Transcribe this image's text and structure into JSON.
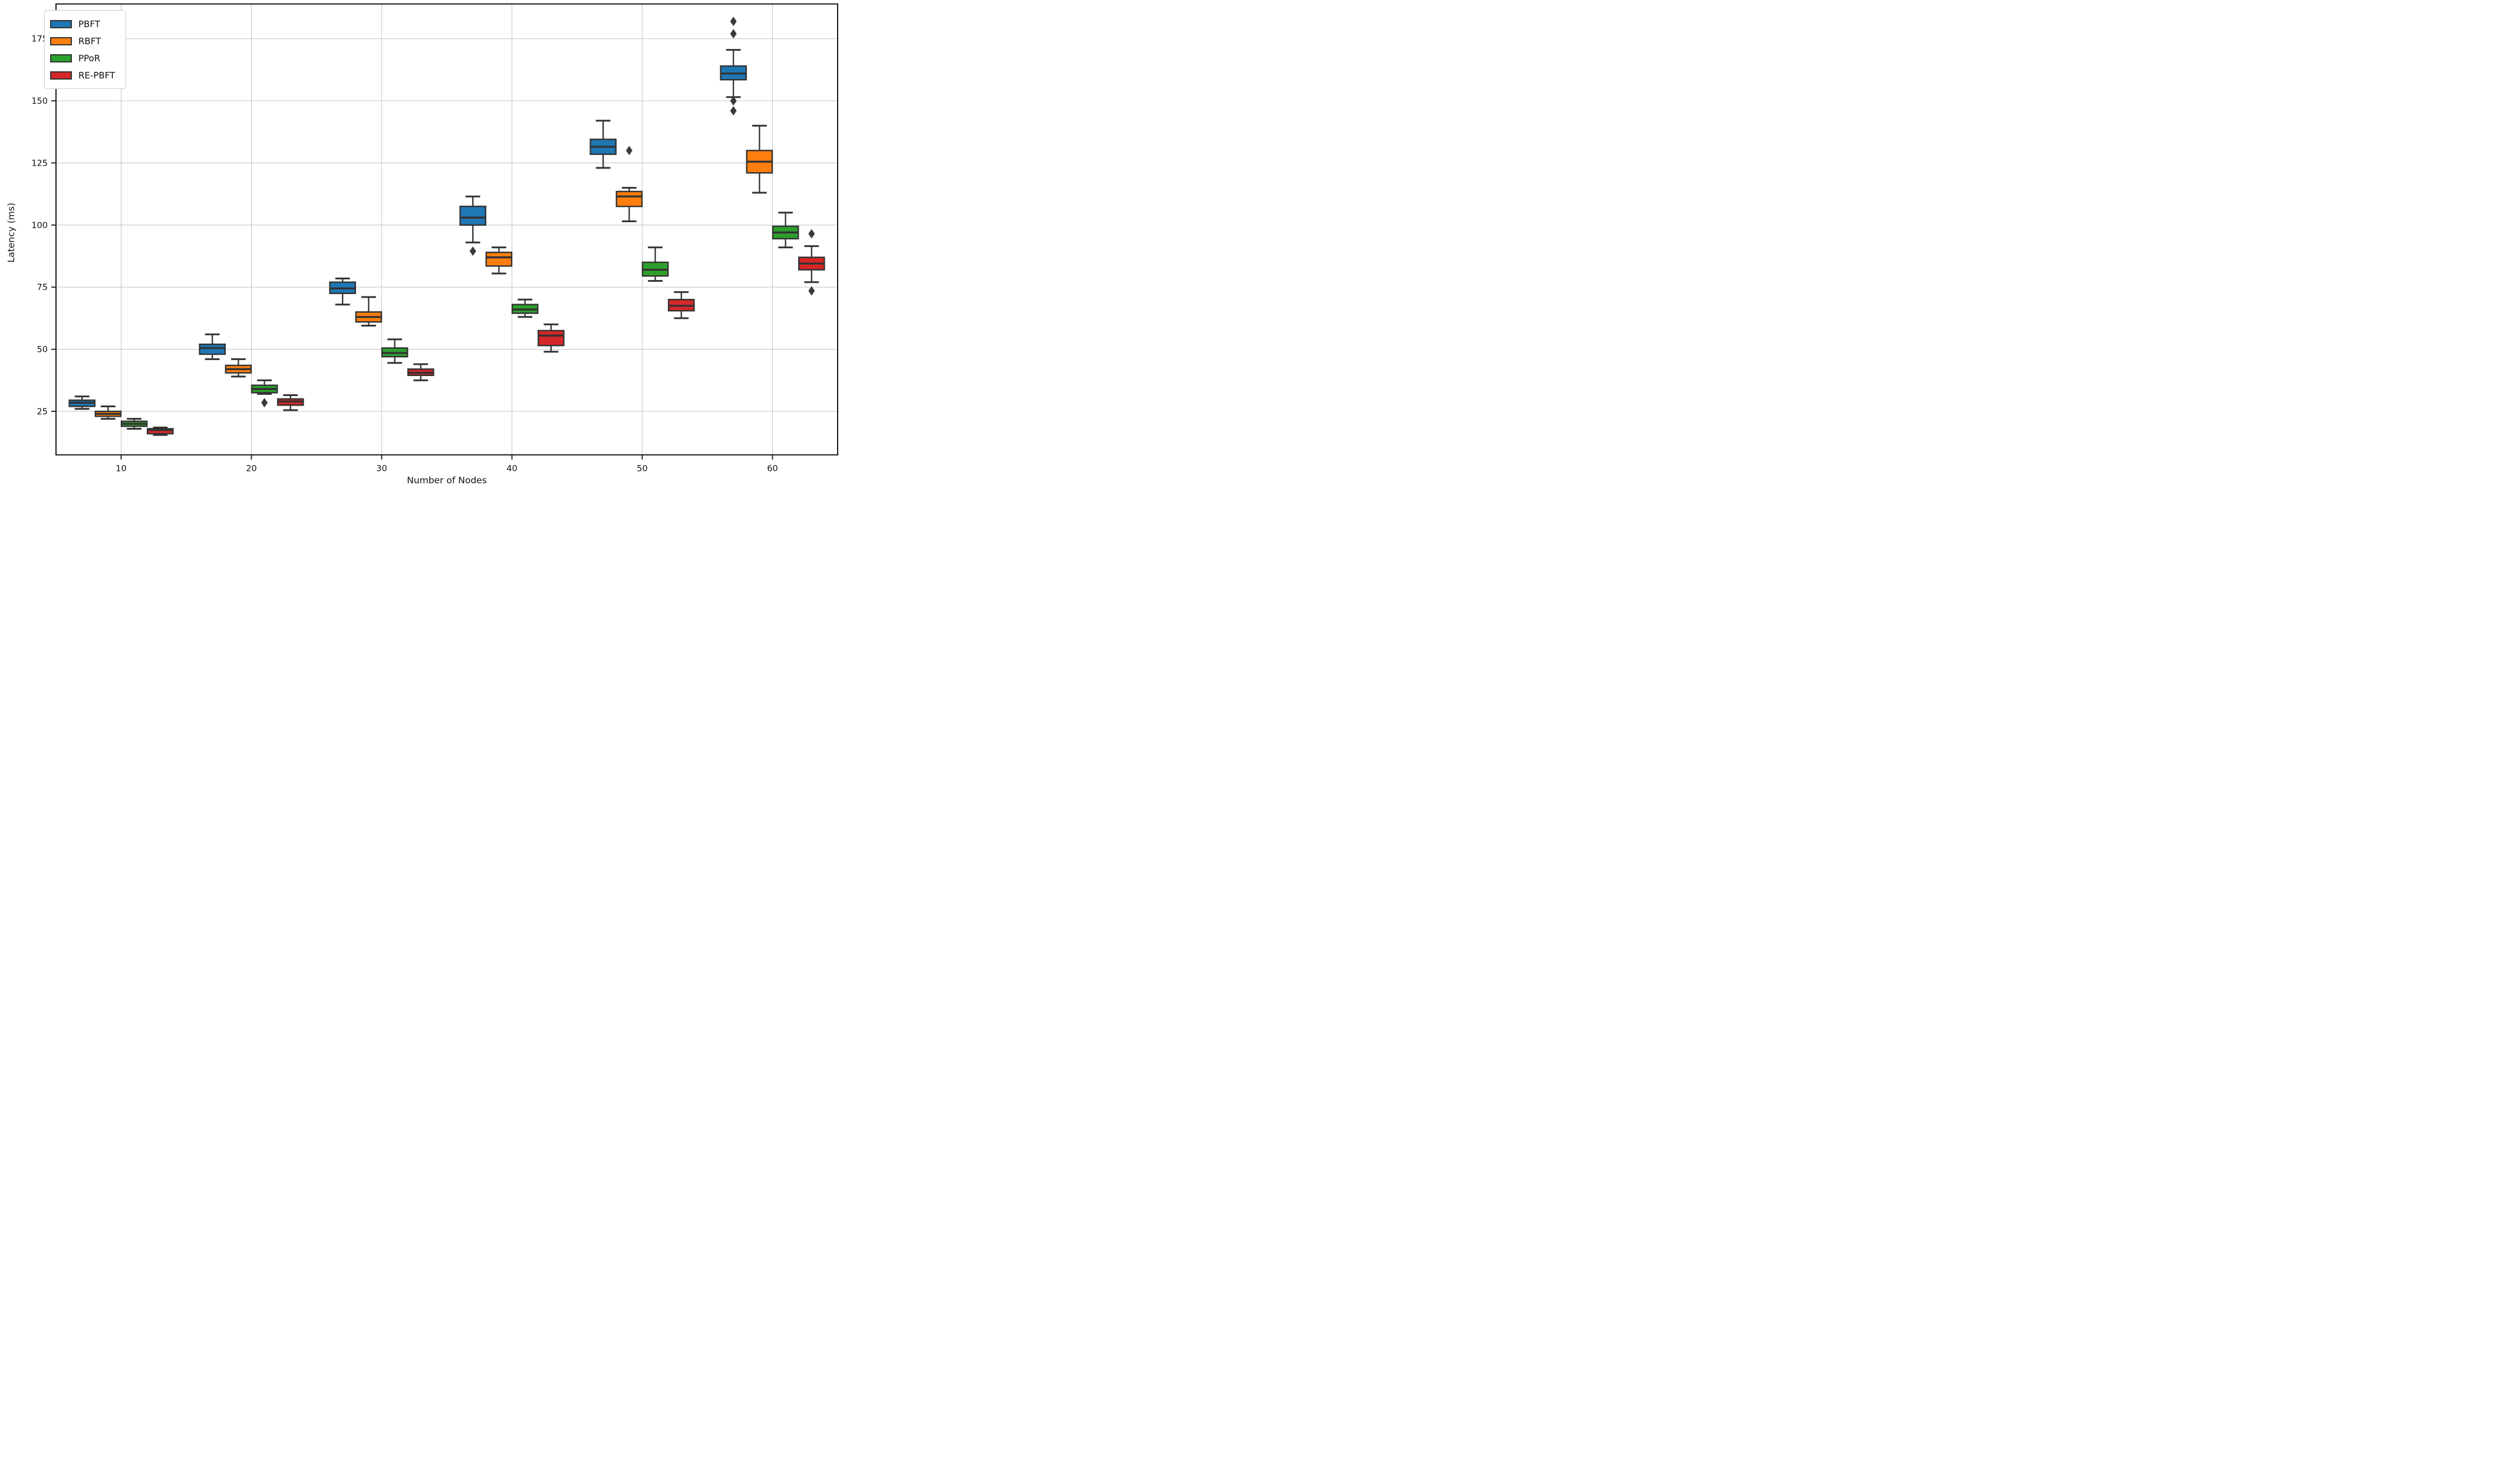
{
  "figure": {
    "background": "#ffffff"
  },
  "chart_data": {
    "type": "box",
    "title": "",
    "xlabel": "Number of Nodes",
    "ylabel": "Latency (ms)",
    "categories": [
      "10",
      "20",
      "30",
      "40",
      "50",
      "60"
    ],
    "yticks": [
      25,
      50,
      75,
      100,
      125,
      150,
      175
    ],
    "ylim": [
      7.5,
      189
    ],
    "grid": true,
    "legend_position": "upper-left",
    "colors": {
      "box_edge": "#333333",
      "flier": "#3a3a3a",
      "grid": "#c9c9c9",
      "spine": "#1a1a1a",
      "text": "#111111"
    },
    "series": [
      {
        "name": "PBFT",
        "color": "#1f77b4",
        "boxes": [
          {
            "whislo": 26,
            "q1": 27,
            "med": 28.5,
            "q3": 29.5,
            "whishi": 31,
            "fliers": []
          },
          {
            "whislo": 46,
            "q1": 48,
            "med": 50.5,
            "q3": 52,
            "whishi": 56,
            "fliers": []
          },
          {
            "whislo": 68,
            "q1": 72.5,
            "med": 74.5,
            "q3": 77,
            "whishi": 78.5,
            "fliers": []
          },
          {
            "whislo": 93,
            "q1": 100,
            "med": 103,
            "q3": 107.5,
            "whishi": 111.5,
            "fliers": [
              89.5
            ]
          },
          {
            "whislo": 123,
            "q1": 128.5,
            "med": 131.5,
            "q3": 134.5,
            "whishi": 142,
            "fliers": []
          },
          {
            "whislo": 151.5,
            "q1": 158.5,
            "med": 161,
            "q3": 164,
            "whishi": 170.5,
            "fliers": [
              146,
              150,
              177,
              182
            ]
          }
        ]
      },
      {
        "name": "RBFT",
        "color": "#ff7f0e",
        "boxes": [
          {
            "whislo": 22,
            "q1": 23,
            "med": 24,
            "q3": 25,
            "whishi": 27,
            "fliers": []
          },
          {
            "whislo": 39,
            "q1": 40.5,
            "med": 42,
            "q3": 43.5,
            "whishi": 46,
            "fliers": []
          },
          {
            "whislo": 59.5,
            "q1": 61,
            "med": 63,
            "q3": 65,
            "whishi": 71,
            "fliers": []
          },
          {
            "whislo": 80.5,
            "q1": 83.5,
            "med": 87,
            "q3": 89,
            "whishi": 91,
            "fliers": []
          },
          {
            "whislo": 101.5,
            "q1": 107.5,
            "med": 111.5,
            "q3": 113.5,
            "whishi": 115,
            "fliers": [
              130
            ]
          },
          {
            "whislo": 113,
            "q1": 121,
            "med": 125.5,
            "q3": 130,
            "whishi": 140,
            "fliers": []
          }
        ]
      },
      {
        "name": "PPoR",
        "color": "#2ca02c",
        "boxes": [
          {
            "whislo": 18,
            "q1": 19,
            "med": 20,
            "q3": 21,
            "whishi": 22,
            "fliers": []
          },
          {
            "whislo": 32,
            "q1": 32.5,
            "med": 34,
            "q3": 35.5,
            "whishi": 37.5,
            "fliers": [
              28.5
            ]
          },
          {
            "whislo": 44.5,
            "q1": 47,
            "med": 48.5,
            "q3": 50.5,
            "whishi": 54,
            "fliers": []
          },
          {
            "whislo": 63,
            "q1": 64.5,
            "med": 66,
            "q3": 68,
            "whishi": 70,
            "fliers": []
          },
          {
            "whislo": 77.5,
            "q1": 79.5,
            "med": 82,
            "q3": 85,
            "whishi": 91,
            "fliers": []
          },
          {
            "whislo": 91,
            "q1": 94.5,
            "med": 97,
            "q3": 99.5,
            "whishi": 105,
            "fliers": []
          }
        ]
      },
      {
        "name": "RE-PBFT",
        "color": "#d62728",
        "boxes": [
          {
            "whislo": 15.5,
            "q1": 16,
            "med": 17.5,
            "q3": 18,
            "whishi": 18.5,
            "fliers": []
          },
          {
            "whislo": 25.5,
            "q1": 27.5,
            "med": 29,
            "q3": 30,
            "whishi": 31.5,
            "fliers": []
          },
          {
            "whislo": 37.5,
            "q1": 39.5,
            "med": 40.5,
            "q3": 42,
            "whishi": 44,
            "fliers": []
          },
          {
            "whislo": 49,
            "q1": 51.5,
            "med": 55.5,
            "q3": 57.5,
            "whishi": 60,
            "fliers": []
          },
          {
            "whislo": 62.5,
            "q1": 65.5,
            "med": 67.5,
            "q3": 70,
            "whishi": 73,
            "fliers": []
          },
          {
            "whislo": 77,
            "q1": 82,
            "med": 84.5,
            "q3": 87,
            "whishi": 91.5,
            "fliers": [
              73.5,
              96.5
            ]
          }
        ]
      }
    ]
  }
}
